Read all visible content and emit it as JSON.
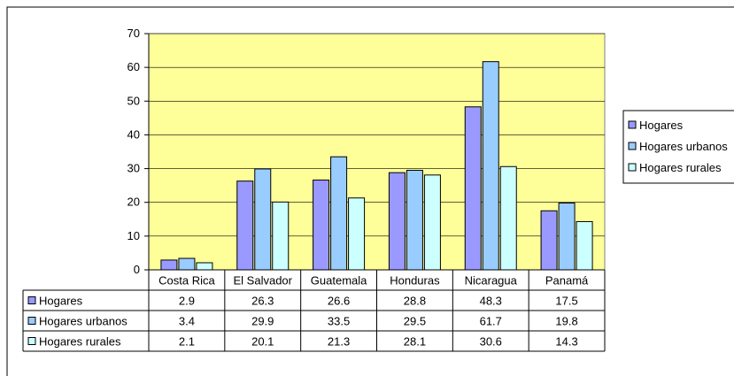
{
  "colors": {
    "plot_background": "#ffff99",
    "gridline": "#000000",
    "series": [
      "#9999ff",
      "#99ccff",
      "#ccffff"
    ],
    "border": "#000000"
  },
  "chart_data": {
    "type": "bar",
    "title": "",
    "xlabel": "",
    "ylabel": "",
    "categories": [
      "Costa Rica",
      "El Salvador",
      "Guatemala",
      "Honduras",
      "Nicaragua",
      "Panamá"
    ],
    "series": [
      {
        "name": "Hogares",
        "values": [
          2.9,
          26.3,
          26.6,
          28.8,
          48.3,
          17.5
        ]
      },
      {
        "name": "Hogares urbanos",
        "values": [
          3.4,
          29.9,
          33.5,
          29.5,
          61.7,
          19.8
        ]
      },
      {
        "name": "Hogares rurales",
        "values": [
          2.1,
          20.1,
          21.3,
          28.1,
          30.6,
          14.3
        ]
      }
    ],
    "ylim": [
      0,
      70
    ],
    "yticks": [
      0,
      10,
      20,
      30,
      40,
      50,
      60,
      70
    ],
    "grid": true,
    "legend_position": "right",
    "data_table": true
  }
}
